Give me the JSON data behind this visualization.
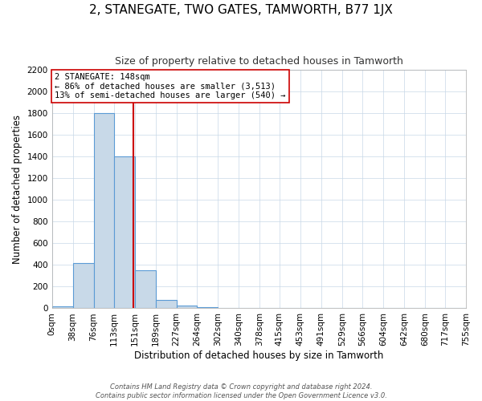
{
  "title": "2, STANEGATE, TWO GATES, TAMWORTH, B77 1JX",
  "subtitle": "Size of property relative to detached houses in Tamworth",
  "xlabel": "Distribution of detached houses by size in Tamworth",
  "ylabel": "Number of detached properties",
  "bin_edges": [
    0,
    38,
    76,
    113,
    151,
    189,
    227,
    264,
    302,
    340,
    378,
    415,
    453,
    491,
    529,
    566,
    604,
    642,
    680,
    717,
    755
  ],
  "bar_heights": [
    15,
    415,
    1800,
    1400,
    350,
    75,
    25,
    10,
    0,
    0,
    0,
    0,
    0,
    0,
    0,
    0,
    0,
    0,
    0,
    0
  ],
  "bar_color": "#c8d9e8",
  "bar_edge_color": "#5b9bd5",
  "property_size": 148,
  "vline_color": "#cc0000",
  "annotation_line1": "2 STANEGATE: 148sqm",
  "annotation_line2": "← 86% of detached houses are smaller (3,513)",
  "annotation_line3": "13% of semi-detached houses are larger (540) →",
  "annotation_box_edge_color": "#cc0000",
  "ylim": [
    0,
    2200
  ],
  "ytick_interval": 200,
  "footer_line1": "Contains HM Land Registry data © Crown copyright and database right 2024.",
  "footer_line2": "Contains public sector information licensed under the Open Government Licence v3.0.",
  "background_color": "#ffffff",
  "grid_color": "#c8d8e8",
  "tick_label_fontsize": 7.5,
  "title_fontsize": 11,
  "subtitle_fontsize": 9,
  "footer_fontsize": 6
}
